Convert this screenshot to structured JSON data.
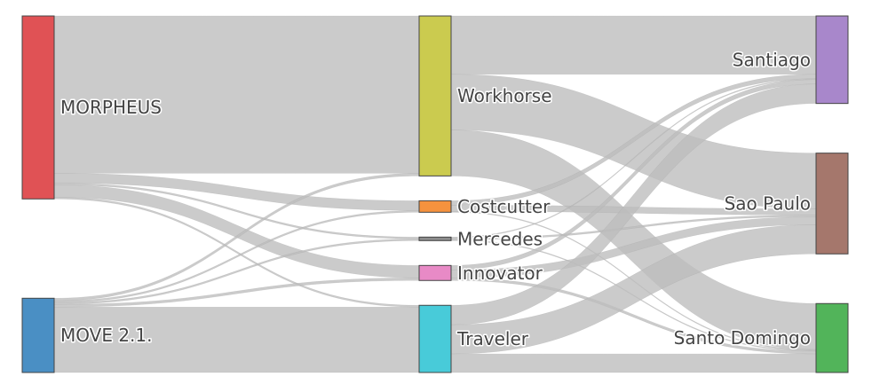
{
  "chart_data": {
    "type": "sankey",
    "link_color": "#bdbdbd",
    "nodes": [
      {
        "id": "morpheus",
        "label": "MORPHEUS",
        "column": 0,
        "color": "#e05255"
      },
      {
        "id": "move",
        "label": "MOVE 2.1.",
        "column": 0,
        "color": "#4a8fc4"
      },
      {
        "id": "workhorse",
        "label": "Workhorse",
        "column": 1,
        "color": "#cbcb4f"
      },
      {
        "id": "costcutter",
        "label": "Costcutter",
        "column": 1,
        "color": "#f5923e"
      },
      {
        "id": "mercedes",
        "label": "Mercedes",
        "column": 1,
        "color": "#8c8c8c"
      },
      {
        "id": "innovator",
        "label": "Innovator",
        "column": 1,
        "color": "#e88ac6"
      },
      {
        "id": "traveler",
        "label": "Traveler",
        "column": 1,
        "color": "#48cbd9"
      },
      {
        "id": "santiago",
        "label": "Santiago",
        "column": 2,
        "color": "#a887cb"
      },
      {
        "id": "saopaulo",
        "label": "Sao Paulo",
        "column": 2,
        "color": "#a5776c"
      },
      {
        "id": "santodomingo",
        "label": "Santo Domingo",
        "column": 2,
        "color": "#52b45a"
      }
    ],
    "links": [
      {
        "source": "morpheus",
        "target": "workhorse",
        "value": 178
      },
      {
        "source": "morpheus",
        "target": "costcutter",
        "value": 11
      },
      {
        "source": "morpheus",
        "target": "mercedes",
        "value": 2
      },
      {
        "source": "morpheus",
        "target": "innovator",
        "value": 14
      },
      {
        "source": "morpheus",
        "target": "traveler",
        "value": 2
      },
      {
        "source": "move",
        "target": "workhorse",
        "value": 3
      },
      {
        "source": "move",
        "target": "costcutter",
        "value": 2
      },
      {
        "source": "move",
        "target": "mercedes",
        "value": 2
      },
      {
        "source": "move",
        "target": "innovator",
        "value": 3
      },
      {
        "source": "move",
        "target": "traveler",
        "value": 74
      },
      {
        "source": "workhorse",
        "target": "santiago",
        "value": 66
      },
      {
        "source": "workhorse",
        "target": "saopaulo",
        "value": 63
      },
      {
        "source": "workhorse",
        "target": "santodomingo",
        "value": 52
      },
      {
        "source": "costcutter",
        "target": "santiago",
        "value": 5
      },
      {
        "source": "costcutter",
        "target": "saopaulo",
        "value": 7
      },
      {
        "source": "costcutter",
        "target": "santodomingo",
        "value": 1
      },
      {
        "source": "mercedes",
        "target": "santiago",
        "value": 1
      },
      {
        "source": "mercedes",
        "target": "saopaulo",
        "value": 2
      },
      {
        "source": "mercedes",
        "target": "santodomingo",
        "value": 1
      },
      {
        "source": "innovator",
        "target": "santiago",
        "value": 5
      },
      {
        "source": "innovator",
        "target": "saopaulo",
        "value": 9
      },
      {
        "source": "innovator",
        "target": "santodomingo",
        "value": 3
      },
      {
        "source": "traveler",
        "target": "santiago",
        "value": 22
      },
      {
        "source": "traveler",
        "target": "saopaulo",
        "value": 33
      },
      {
        "source": "traveler",
        "target": "santodomingo",
        "value": 21
      }
    ]
  }
}
